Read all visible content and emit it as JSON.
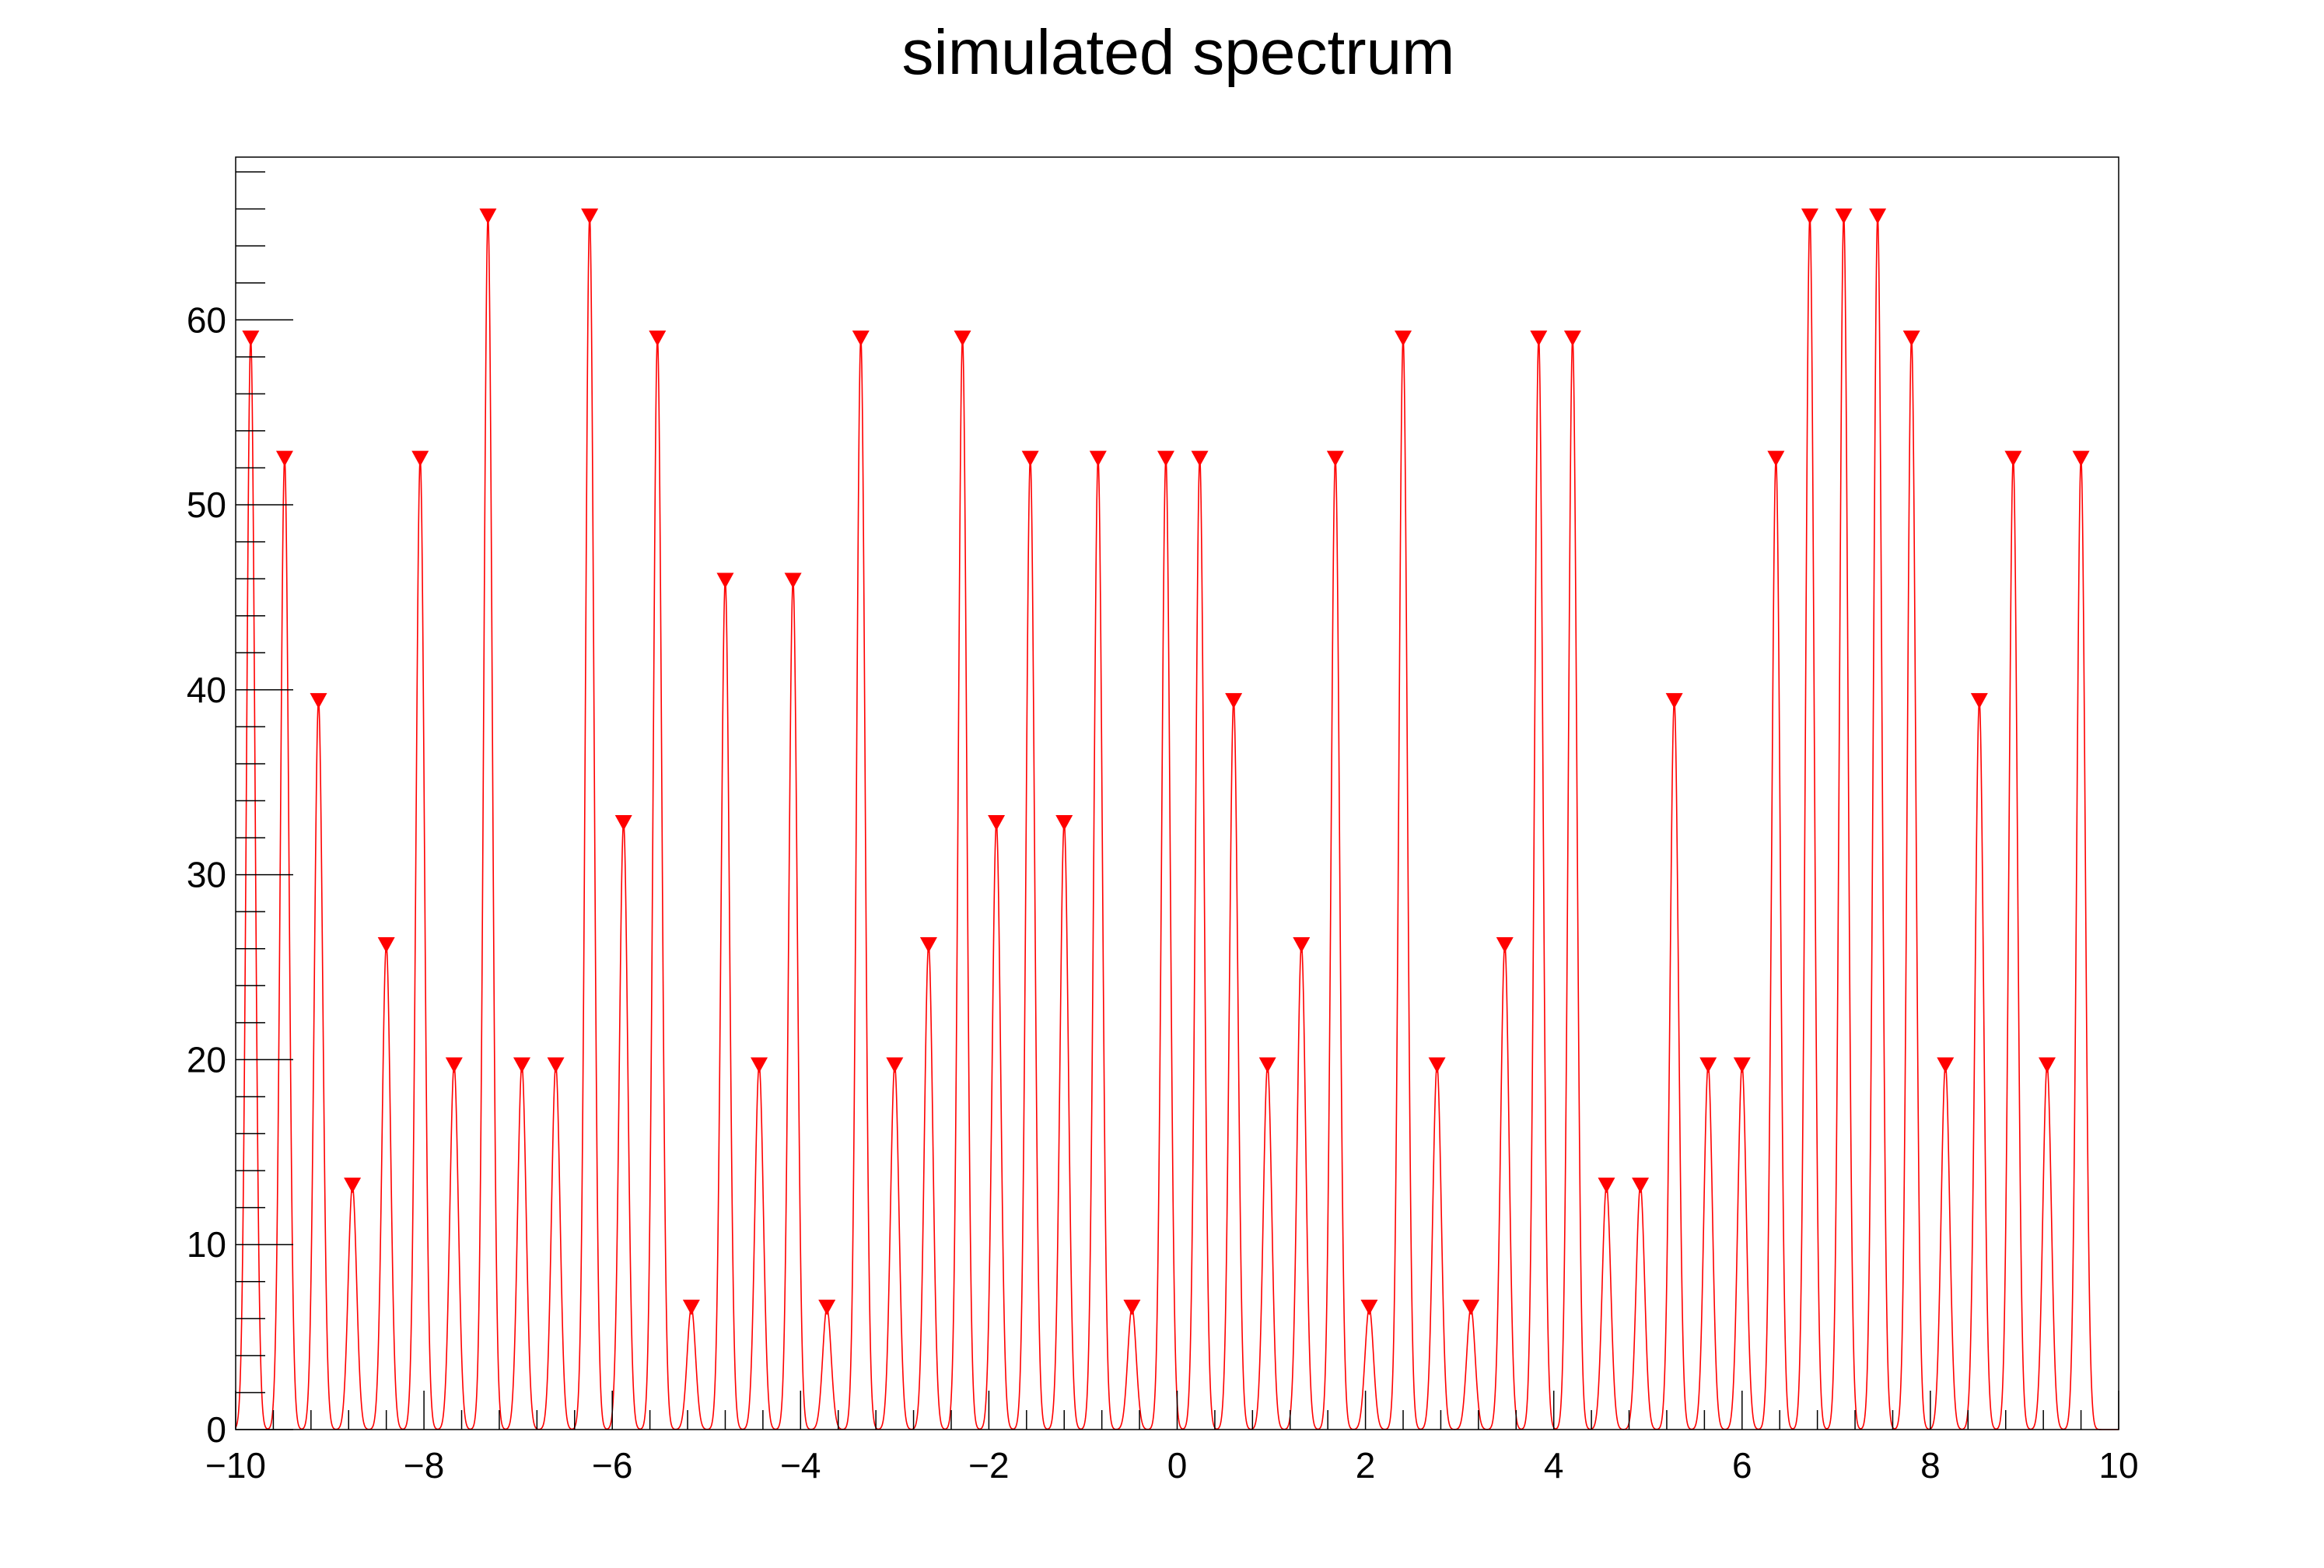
{
  "chart_data": {
    "type": "line",
    "title": "simulated spectrum",
    "xlabel": "",
    "ylabel": "",
    "xlim": [
      -10,
      10
    ],
    "ylim": [
      0,
      68.8
    ],
    "x_ticks": [
      -10,
      -8,
      -6,
      -4,
      -2,
      0,
      2,
      4,
      6,
      8,
      10
    ],
    "x_tick_labels": [
      "−10",
      "−8",
      "−6",
      "−4",
      "−2",
      "0",
      "2",
      "4",
      "6",
      "8",
      "10"
    ],
    "y_ticks": [
      0,
      10,
      20,
      30,
      40,
      50,
      60
    ],
    "y_tick_labels": [
      "0",
      "10",
      "20",
      "30",
      "40",
      "50",
      "60"
    ],
    "grid": false,
    "line_color": "#ff0000",
    "marker_color": "#ff0000",
    "marker_shape": "inverted-triangle",
    "peak_width_sigma": 0.045,
    "series": [
      {
        "peaks": [
          {
            "x": -9.84,
            "y": 59.0
          },
          {
            "x": -9.48,
            "y": 52.5
          },
          {
            "x": -9.12,
            "y": 39.4
          },
          {
            "x": -8.76,
            "y": 13.2
          },
          {
            "x": -8.4,
            "y": 26.2
          },
          {
            "x": -8.04,
            "y": 52.5
          },
          {
            "x": -7.68,
            "y": 19.7
          },
          {
            "x": -7.32,
            "y": 65.6
          },
          {
            "x": -6.96,
            "y": 19.7
          },
          {
            "x": -6.6,
            "y": 19.7
          },
          {
            "x": -6.24,
            "y": 65.6
          },
          {
            "x": -5.88,
            "y": 32.8
          },
          {
            "x": -5.52,
            "y": 59.0
          },
          {
            "x": -5.16,
            "y": 6.6
          },
          {
            "x": -4.8,
            "y": 45.9
          },
          {
            "x": -4.44,
            "y": 19.7
          },
          {
            "x": -4.08,
            "y": 45.9
          },
          {
            "x": -3.72,
            "y": 6.6
          },
          {
            "x": -3.36,
            "y": 59.0
          },
          {
            "x": -3.0,
            "y": 19.7
          },
          {
            "x": -2.64,
            "y": 26.2
          },
          {
            "x": -2.28,
            "y": 59.0
          },
          {
            "x": -1.92,
            "y": 32.8
          },
          {
            "x": -1.56,
            "y": 52.5
          },
          {
            "x": -1.2,
            "y": 32.8
          },
          {
            "x": -0.84,
            "y": 52.5
          },
          {
            "x": -0.48,
            "y": 6.6
          },
          {
            "x": -0.12,
            "y": 52.5
          },
          {
            "x": 0.24,
            "y": 52.5
          },
          {
            "x": 0.6,
            "y": 39.4
          },
          {
            "x": 0.96,
            "y": 19.7
          },
          {
            "x": 1.32,
            "y": 26.2
          },
          {
            "x": 1.68,
            "y": 52.5
          },
          {
            "x": 2.04,
            "y": 6.6
          },
          {
            "x": 2.4,
            "y": 59.0
          },
          {
            "x": 2.76,
            "y": 19.7
          },
          {
            "x": 3.12,
            "y": 6.6
          },
          {
            "x": 3.48,
            "y": 26.2
          },
          {
            "x": 3.84,
            "y": 59.0
          },
          {
            "x": 4.2,
            "y": 59.0
          },
          {
            "x": 4.56,
            "y": 13.2
          },
          {
            "x": 4.92,
            "y": 13.2
          },
          {
            "x": 5.28,
            "y": 39.4
          },
          {
            "x": 5.64,
            "y": 19.7
          },
          {
            "x": 6.0,
            "y": 19.7
          },
          {
            "x": 6.36,
            "y": 52.5
          },
          {
            "x": 6.72,
            "y": 65.6
          },
          {
            "x": 7.08,
            "y": 65.6
          },
          {
            "x": 7.44,
            "y": 65.6
          },
          {
            "x": 7.8,
            "y": 59.0
          },
          {
            "x": 8.16,
            "y": 19.7
          },
          {
            "x": 8.52,
            "y": 39.4
          },
          {
            "x": 8.88,
            "y": 52.5
          },
          {
            "x": 9.24,
            "y": 19.7
          },
          {
            "x": 9.6,
            "y": 52.5
          }
        ]
      }
    ]
  }
}
